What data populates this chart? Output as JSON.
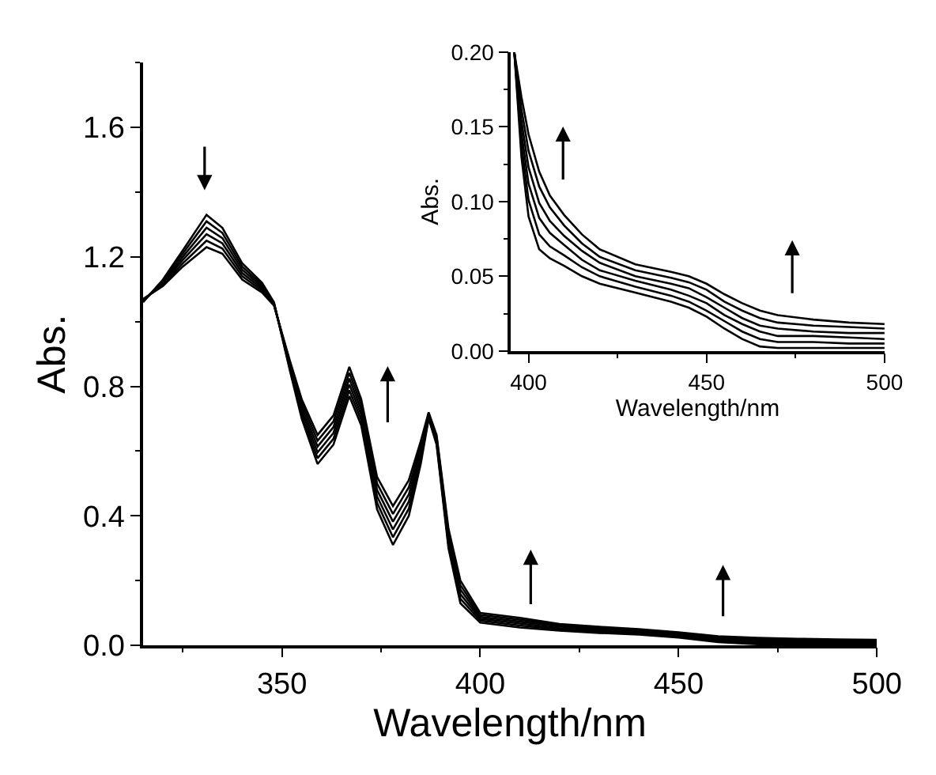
{
  "chart_data": [
    {
      "type": "line",
      "xlabel": "Wavelength/nm",
      "ylabel": "Abs.",
      "xlim": [
        315,
        500
      ],
      "xticks": [
        350,
        400,
        450,
        500
      ],
      "ylim": [
        0,
        1.8
      ],
      "yticks": [
        {
          "value": 0,
          "label": "0.0"
        },
        0.4,
        0.8,
        1.2,
        1.6
      ],
      "x": [
        315,
        320,
        325,
        331,
        335,
        340,
        345,
        348,
        352,
        355,
        359,
        363,
        367,
        370,
        374,
        378,
        382,
        385,
        387,
        389,
        392,
        395,
        400,
        410,
        420,
        430,
        440,
        450,
        460,
        470,
        480,
        490,
        500
      ],
      "series": [
        {
          "color": "#000000",
          "values": [
            1.06,
            1.13,
            1.22,
            1.33,
            1.29,
            1.18,
            1.12,
            1.06,
            0.85,
            0.7,
            0.56,
            0.62,
            0.77,
            0.68,
            0.42,
            0.31,
            0.4,
            0.56,
            0.7,
            0.62,
            0.3,
            0.13,
            0.07,
            0.055,
            0.045,
            0.038,
            0.033,
            0.024,
            0.01,
            0.003,
            0.001,
            0.0,
            0.0
          ]
        },
        {
          "color": "#000000",
          "values": [
            1.062,
            1.126,
            1.21,
            1.31,
            1.274,
            1.17,
            1.114,
            1.058,
            0.856,
            0.712,
            0.578,
            0.638,
            0.788,
            0.696,
            0.44,
            0.334,
            0.422,
            0.574,
            0.704,
            0.626,
            0.312,
            0.144,
            0.076,
            0.061,
            0.049,
            0.042,
            0.036,
            0.027,
            0.014,
            0.007,
            0.005,
            0.004,
            0.003
          ]
        },
        {
          "color": "#000000",
          "values": [
            1.064,
            1.122,
            1.2,
            1.29,
            1.258,
            1.16,
            1.108,
            1.056,
            0.862,
            0.724,
            0.596,
            0.656,
            0.806,
            0.712,
            0.46,
            0.358,
            0.444,
            0.588,
            0.708,
            0.632,
            0.324,
            0.158,
            0.082,
            0.067,
            0.053,
            0.046,
            0.04,
            0.03,
            0.017,
            0.011,
            0.009,
            0.007,
            0.007
          ]
        },
        {
          "color": "#000000",
          "values": [
            1.066,
            1.118,
            1.19,
            1.27,
            1.242,
            1.15,
            1.102,
            1.054,
            0.868,
            0.736,
            0.614,
            0.674,
            0.824,
            0.728,
            0.48,
            0.382,
            0.466,
            0.602,
            0.712,
            0.638,
            0.336,
            0.172,
            0.088,
            0.073,
            0.058,
            0.049,
            0.043,
            0.034,
            0.021,
            0.015,
            0.012,
            0.011,
            0.01
          ]
        },
        {
          "color": "#000000",
          "values": [
            1.068,
            1.114,
            1.18,
            1.25,
            1.226,
            1.14,
            1.096,
            1.052,
            0.874,
            0.748,
            0.632,
            0.692,
            0.842,
            0.744,
            0.5,
            0.406,
            0.488,
            0.616,
            0.716,
            0.644,
            0.348,
            0.186,
            0.094,
            0.079,
            0.062,
            0.053,
            0.047,
            0.037,
            0.024,
            0.019,
            0.016,
            0.014,
            0.014
          ]
        },
        {
          "color": "#000000",
          "values": [
            1.07,
            1.11,
            1.17,
            1.23,
            1.21,
            1.13,
            1.09,
            1.05,
            0.88,
            0.76,
            0.65,
            0.71,
            0.86,
            0.76,
            0.52,
            0.43,
            0.51,
            0.63,
            0.72,
            0.65,
            0.36,
            0.2,
            0.1,
            0.085,
            0.066,
            0.057,
            0.05,
            0.04,
            0.028,
            0.023,
            0.02,
            0.018,
            0.017
          ]
        }
      ]
    },
    {
      "type": "line",
      "xlabel": "Wavelength/nm",
      "ylabel": "Abs.",
      "xlim": [
        395,
        500
      ],
      "xticks": [
        400,
        450,
        500
      ],
      "ylim": [
        0,
        0.2
      ],
      "yticks": [
        {
          "value": 0,
          "label": "0.00"
        },
        0.05,
        {
          "value": 0.1,
          "label": "0.10"
        },
        0.15,
        {
          "value": 0.2,
          "label": "0.20"
        }
      ],
      "x": [
        396,
        398,
        400,
        403,
        406,
        410,
        415,
        420,
        430,
        440,
        445,
        450,
        455,
        460,
        465,
        470,
        480,
        490,
        500
      ],
      "series": [
        {
          "color": "#000000",
          "values": [
            0.2,
            0.13,
            0.09,
            0.068,
            0.062,
            0.057,
            0.05,
            0.045,
            0.039,
            0.033,
            0.029,
            0.023,
            0.015,
            0.008,
            0.003,
            0.002,
            0.002,
            0.002,
            0.002
          ]
        },
        {
          "color": "#000000",
          "values": [
            0.2,
            0.138,
            0.101,
            0.078,
            0.07,
            0.064,
            0.056,
            0.05,
            0.043,
            0.037,
            0.033,
            0.027,
            0.02,
            0.013,
            0.008,
            0.006,
            0.006,
            0.005,
            0.005
          ]
        },
        {
          "color": "#000000",
          "values": [
            0.2,
            0.146,
            0.112,
            0.089,
            0.079,
            0.071,
            0.061,
            0.054,
            0.047,
            0.041,
            0.037,
            0.032,
            0.024,
            0.018,
            0.013,
            0.01,
            0.01,
            0.009,
            0.008
          ]
        },
        {
          "color": "#000000",
          "values": [
            0.2,
            0.154,
            0.123,
            0.099,
            0.087,
            0.077,
            0.067,
            0.059,
            0.05,
            0.045,
            0.042,
            0.036,
            0.029,
            0.022,
            0.017,
            0.015,
            0.013,
            0.012,
            0.012
          ]
        },
        {
          "color": "#000000",
          "values": [
            0.2,
            0.162,
            0.134,
            0.11,
            0.096,
            0.084,
            0.072,
            0.063,
            0.054,
            0.049,
            0.046,
            0.041,
            0.033,
            0.027,
            0.022,
            0.019,
            0.017,
            0.016,
            0.015
          ]
        },
        {
          "color": "#000000",
          "values": [
            0.2,
            0.17,
            0.145,
            0.12,
            0.104,
            0.091,
            0.078,
            0.068,
            0.058,
            0.053,
            0.05,
            0.045,
            0.038,
            0.032,
            0.027,
            0.024,
            0.021,
            0.019,
            0.018
          ]
        }
      ]
    }
  ]
}
